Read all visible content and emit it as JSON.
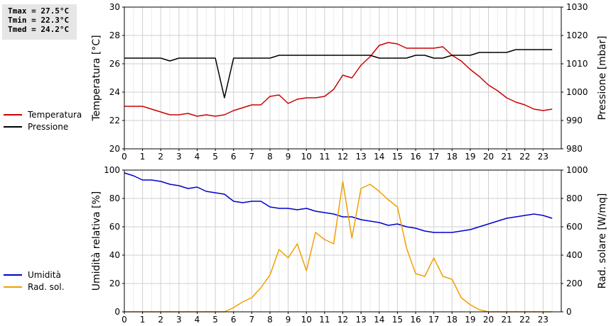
{
  "stats": {
    "tmax": "Tmax = 27.5°C",
    "tmin": "Tmin = 22.3°C",
    "tmed": "Tmed = 24.2°C"
  },
  "legend_top": [
    {
      "label": "Temperatura",
      "color": "#cc0000"
    },
    {
      "label": "Pressione",
      "color": "#000000"
    }
  ],
  "legend_bottom": [
    {
      "label": "Umidità",
      "color": "#0000cc"
    },
    {
      "label": "Rad. sol.",
      "color": "#f0a000"
    }
  ],
  "chart_data": [
    {
      "type": "line",
      "xlabel": "",
      "ylabel": "Temperatura [°C]",
      "y2label": "Pressione [mbar]",
      "xlim": [
        0,
        24
      ],
      "ylim": [
        20,
        30
      ],
      "y2lim": [
        980,
        1030
      ],
      "xticks": [
        0,
        1,
        2,
        3,
        4,
        5,
        6,
        7,
        8,
        9,
        10,
        11,
        12,
        13,
        14,
        15,
        16,
        17,
        18,
        19,
        20,
        21,
        22,
        23
      ],
      "yticks": [
        20,
        22,
        24,
        26,
        28,
        30
      ],
      "y2ticks": [
        980,
        990,
        1000,
        1010,
        1020,
        1030
      ],
      "grid": true,
      "series": [
        {
          "name": "Temperatura",
          "color": "#cc0000",
          "axis": "left",
          "x": [
            0,
            0.5,
            1,
            1.5,
            2,
            2.5,
            3,
            3.5,
            4,
            4.5,
            5,
            5.5,
            6,
            6.5,
            7,
            7.5,
            8,
            8.5,
            9,
            9.5,
            10,
            10.5,
            11,
            11.5,
            12,
            12.5,
            13,
            13.5,
            14,
            14.5,
            15,
            15.5,
            16,
            16.5,
            17,
            17.5,
            18,
            18.5,
            19,
            19.5,
            20,
            20.5,
            21,
            21.5,
            22,
            22.5,
            23,
            23.5
          ],
          "y": [
            23.0,
            23.0,
            23.0,
            22.8,
            22.6,
            22.4,
            22.4,
            22.5,
            22.3,
            22.4,
            22.3,
            22.4,
            22.7,
            22.9,
            23.1,
            23.1,
            23.7,
            23.8,
            23.2,
            23.5,
            23.6,
            23.6,
            23.7,
            24.2,
            25.2,
            25.0,
            25.9,
            26.5,
            27.3,
            27.5,
            27.4,
            27.1,
            27.1,
            27.1,
            27.1,
            27.2,
            26.6,
            26.2,
            25.6,
            25.1,
            24.5,
            24.1,
            23.6,
            23.3,
            23.1,
            22.8,
            22.7,
            22.8
          ]
        },
        {
          "name": "Pressione",
          "color": "#000000",
          "axis": "right",
          "x": [
            0,
            0.5,
            1,
            1.5,
            2,
            2.5,
            3,
            3.5,
            4,
            4.5,
            5,
            5.5,
            6,
            6.5,
            7,
            7.5,
            8,
            8.5,
            9,
            9.5,
            10,
            10.5,
            11,
            11.5,
            12,
            12.5,
            13,
            13.5,
            14,
            14.5,
            15,
            15.5,
            16,
            16.5,
            17,
            17.5,
            18,
            18.5,
            19,
            19.5,
            20,
            20.5,
            21,
            21.5,
            22,
            22.5,
            23,
            23.5
          ],
          "y": [
            1012,
            1012,
            1012,
            1012,
            1012,
            1011,
            1012,
            1012,
            1012,
            1012,
            1012,
            998,
            1012,
            1012,
            1012,
            1012,
            1012,
            1013,
            1013,
            1013,
            1013,
            1013,
            1013,
            1013,
            1013,
            1013,
            1013,
            1013,
            1012,
            1012,
            1012,
            1012,
            1013,
            1013,
            1012,
            1012,
            1013,
            1013,
            1013,
            1014,
            1014,
            1014,
            1014,
            1015,
            1015,
            1015,
            1015,
            1015
          ]
        }
      ]
    },
    {
      "type": "line",
      "xlabel": "",
      "ylabel": "Umidità relativa [%]",
      "y2label": "Rad. solare [W/mq]",
      "xlim": [
        0,
        24
      ],
      "ylim": [
        0,
        100
      ],
      "y2lim": [
        0,
        1000
      ],
      "xticks": [
        0,
        1,
        2,
        3,
        4,
        5,
        6,
        7,
        8,
        9,
        10,
        11,
        12,
        13,
        14,
        15,
        16,
        17,
        18,
        19,
        20,
        21,
        22,
        23
      ],
      "yticks": [
        0,
        20,
        40,
        60,
        80,
        100
      ],
      "y2ticks": [
        0,
        200,
        400,
        600,
        800,
        1000
      ],
      "grid": true,
      "series": [
        {
          "name": "Umidità",
          "color": "#0000cc",
          "axis": "left",
          "x": [
            0,
            0.5,
            1,
            1.5,
            2,
            2.5,
            3,
            3.5,
            4,
            4.5,
            5,
            5.5,
            6,
            6.5,
            7,
            7.5,
            8,
            8.5,
            9,
            9.5,
            10,
            10.5,
            11,
            11.5,
            12,
            12.5,
            13,
            13.5,
            14,
            14.5,
            15,
            15.5,
            16,
            16.5,
            17,
            17.5,
            18,
            18.5,
            19,
            19.5,
            20,
            20.5,
            21,
            21.5,
            22,
            22.5,
            23,
            23.5
          ],
          "y": [
            98,
            96,
            93,
            93,
            92,
            90,
            89,
            87,
            88,
            85,
            84,
            83,
            78,
            77,
            78,
            78,
            74,
            73,
            73,
            72,
            73,
            71,
            70,
            69,
            67,
            67,
            65,
            64,
            63,
            61,
            62,
            60,
            59,
            57,
            56,
            56,
            56,
            57,
            58,
            60,
            62,
            64,
            66,
            67,
            68,
            69,
            68,
            66
          ]
        },
        {
          "name": "Rad. sol.",
          "color": "#f0a000",
          "axis": "right",
          "x": [
            0,
            0.5,
            1,
            1.5,
            2,
            2.5,
            3,
            3.5,
            4,
            4.5,
            5,
            5.5,
            6,
            6.5,
            7,
            7.5,
            8,
            8.5,
            9,
            9.5,
            10,
            10.5,
            11,
            11.5,
            12,
            12.5,
            13,
            13.5,
            14,
            14.5,
            15,
            15.5,
            16,
            16.5,
            17,
            17.5,
            18,
            18.5,
            19,
            19.5,
            20,
            20.5,
            21,
            21.5,
            22,
            22.5,
            23,
            23.5
          ],
          "y": [
            0,
            0,
            0,
            0,
            0,
            0,
            0,
            0,
            0,
            0,
            0,
            0,
            30,
            70,
            100,
            170,
            260,
            440,
            380,
            480,
            290,
            560,
            510,
            480,
            920,
            520,
            870,
            900,
            850,
            790,
            740,
            450,
            270,
            250,
            380,
            250,
            230,
            100,
            50,
            15,
            0,
            0,
            0,
            0,
            0,
            0,
            0,
            0
          ]
        }
      ]
    }
  ]
}
